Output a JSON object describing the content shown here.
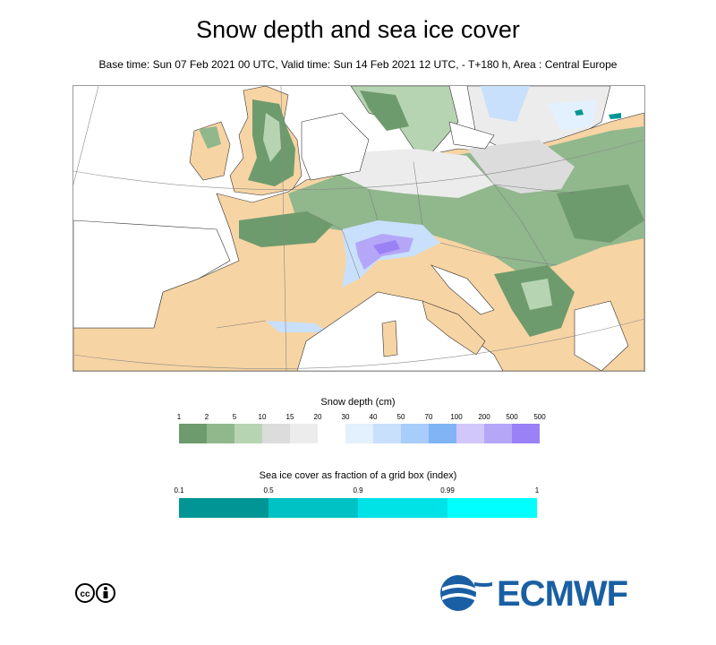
{
  "title": "Snow depth and sea ice cover",
  "subtitle": "Base time: Sun 07 Feb 2021 00 UTC, Valid time: Sun 14 Feb 2021 12 UTC, - T+180 h, Area : Central Europe",
  "map": {
    "area": "Central Europe",
    "colors": {
      "sea": "#ffffff",
      "snow_free_land": "#f7d4a3",
      "coastline": "#333333",
      "borders": "#777777",
      "graticule": "#8a8a8a"
    }
  },
  "snow_legend": {
    "title": "Snow depth (cm)",
    "ticks": [
      "1",
      "2",
      "5",
      "10",
      "15",
      "20",
      "30",
      "40",
      "50",
      "70",
      "100",
      "200",
      "500",
      "500"
    ],
    "colors": [
      "#6e9b6d",
      "#91b78d",
      "#b7d4b2",
      "#dcdcdc",
      "#ececec",
      "#ffffff",
      "#e3f0fd",
      "#c8e0fb",
      "#a8cdfa",
      "#80b4f5",
      "#d2c7fb",
      "#b5a6f8",
      "#9a81f5"
    ]
  },
  "ice_legend": {
    "title": "Sea ice cover as fraction of a grid box (index)",
    "ticks": [
      "0.1",
      "0.5",
      "0.9",
      "0.99",
      "1"
    ],
    "colors": [
      "#029595",
      "#00c2c4",
      "#00e3e6",
      "#00ffff"
    ]
  },
  "footer": {
    "license_icon": "creative-commons-by-icon",
    "logo_text": "ECMWF",
    "logo_color": "#1a5fa3"
  }
}
